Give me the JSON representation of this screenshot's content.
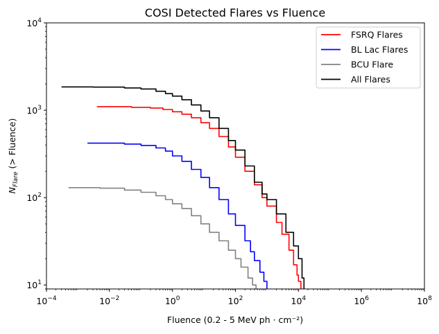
{
  "chart_data": {
    "type": "line",
    "title": "COSI Detected Flares vs Fluence",
    "xlabel": "Fluence (0.2 - 5 MeV  ph · cm⁻²)",
    "ylabel": "N_Flare (> Fluence)",
    "xscale": "log",
    "yscale": "log",
    "xlim": [
      0.0001,
      100000000
    ],
    "ylim": [
      9,
      10000
    ],
    "x_tick_values": [
      0.0001,
      0.01,
      1,
      100,
      10000,
      1000000,
      100000000
    ],
    "x_tick_bases": [
      "10",
      "10",
      "10",
      "10",
      "10",
      "10",
      "10"
    ],
    "x_tick_exponents": [
      "−4",
      "−2",
      "0",
      "2",
      "4",
      "6",
      "8"
    ],
    "y_tick_values": [
      10,
      100,
      1000,
      10000
    ],
    "y_tick_bases": [
      "10",
      "10",
      "10",
      "10"
    ],
    "y_tick_exponents": [
      "1",
      "2",
      "3",
      "4"
    ],
    "grid": false,
    "legend_position": "top-right",
    "series": [
      {
        "name": "FSRQ Flares",
        "color": "#ff0000",
        "x": [
          0.004,
          0.05,
          0.2,
          0.5,
          1,
          2,
          4,
          8,
          15,
          30,
          60,
          100,
          200,
          400,
          700,
          1000,
          2000,
          3000,
          5000,
          7000,
          9000,
          10000,
          12000
        ],
        "y": [
          1100,
          1080,
          1060,
          1020,
          960,
          900,
          820,
          720,
          620,
          500,
          380,
          290,
          200,
          140,
          100,
          80,
          52,
          38,
          25,
          17,
          13,
          11,
          9
        ]
      },
      {
        "name": "BL Lac Flares",
        "color": "#0000ff",
        "x": [
          0.002,
          0.03,
          0.1,
          0.3,
          0.6,
          1,
          2,
          4,
          8,
          15,
          30,
          60,
          100,
          200,
          300,
          400,
          600,
          800,
          1000
        ],
        "y": [
          420,
          410,
          395,
          370,
          340,
          300,
          260,
          210,
          170,
          130,
          95,
          65,
          48,
          32,
          24,
          19,
          14,
          11,
          9
        ]
      },
      {
        "name": "BCU Flare",
        "color": "#808080",
        "x": [
          0.0005,
          0.005,
          0.03,
          0.1,
          0.3,
          0.6,
          1,
          2,
          4,
          8,
          15,
          30,
          60,
          100,
          150,
          250,
          350,
          450
        ],
        "y": [
          130,
          128,
          122,
          115,
          105,
          95,
          85,
          75,
          62,
          50,
          40,
          32,
          25,
          20,
          16,
          12,
          10,
          9
        ]
      },
      {
        "name": "All Flares",
        "color": "#000000",
        "x": [
          0.0003,
          0.003,
          0.03,
          0.1,
          0.3,
          0.6,
          1,
          2,
          4,
          8,
          15,
          30,
          60,
          100,
          200,
          400,
          700,
          1000,
          2000,
          4000,
          7000,
          10000,
          13000,
          15000
        ],
        "y": [
          1850,
          1840,
          1800,
          1750,
          1650,
          1550,
          1450,
          1320,
          1150,
          980,
          820,
          620,
          450,
          350,
          230,
          150,
          110,
          95,
          65,
          40,
          28,
          20,
          12,
          9
        ]
      }
    ]
  }
}
